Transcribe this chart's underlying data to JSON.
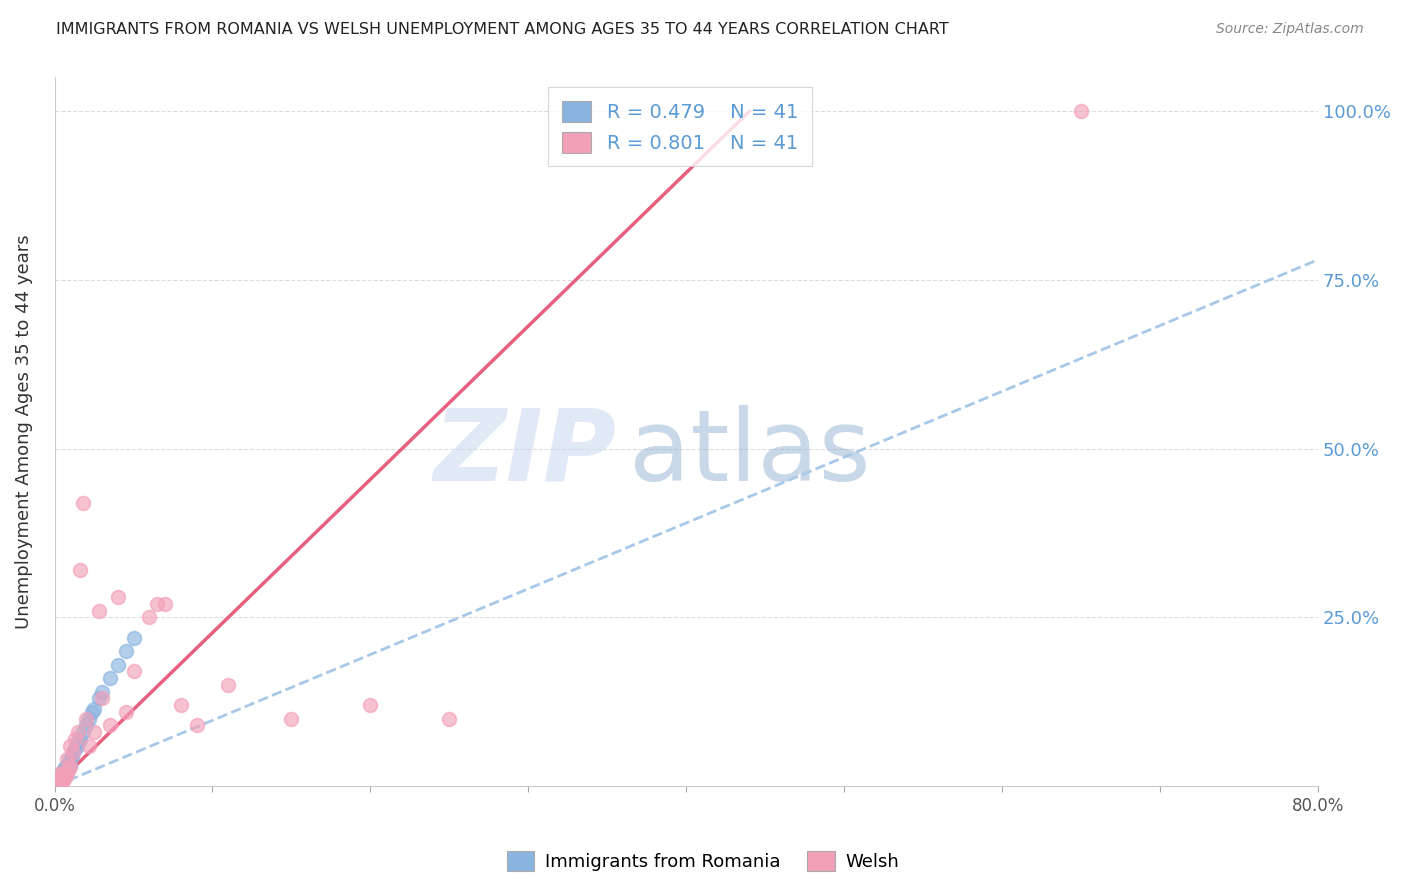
{
  "title": "IMMIGRANTS FROM ROMANIA VS WELSH UNEMPLOYMENT AMONG AGES 35 TO 44 YEARS CORRELATION CHART",
  "source": "Source: ZipAtlas.com",
  "ylabel": "Unemployment Among Ages 35 to 44 years",
  "legend_label1": "Immigrants from Romania",
  "legend_label2": "Welsh",
  "legend_r1": "R = 0.479",
  "legend_n1": "N = 41",
  "legend_r2": "R = 0.801",
  "legend_n2": "N = 41",
  "xlim": [
    0.0,
    0.8
  ],
  "ylim": [
    0.0,
    1.05
  ],
  "color_blue": "#89B4E0",
  "color_pink": "#F2A0B8",
  "color_blue_line": "#A8C8E8",
  "color_pink_line": "#E86080",
  "watermark_zip": "ZIP",
  "watermark_atlas": "atlas",
  "blue_x": [
    0.0,
    0.001,
    0.001,
    0.002,
    0.002,
    0.002,
    0.003,
    0.003,
    0.003,
    0.004,
    0.004,
    0.004,
    0.005,
    0.005,
    0.005,
    0.006,
    0.006,
    0.007,
    0.007,
    0.008,
    0.008,
    0.009,
    0.01,
    0.01,
    0.011,
    0.012,
    0.013,
    0.014,
    0.015,
    0.016,
    0.018,
    0.02,
    0.022,
    0.024,
    0.025,
    0.028,
    0.03,
    0.035,
    0.04,
    0.045,
    0.05
  ],
  "blue_y": [
    0.0,
    0.005,
    0.01,
    0.005,
    0.01,
    0.015,
    0.005,
    0.01,
    0.015,
    0.01,
    0.015,
    0.02,
    0.01,
    0.015,
    0.02,
    0.015,
    0.025,
    0.02,
    0.03,
    0.025,
    0.03,
    0.035,
    0.03,
    0.04,
    0.045,
    0.05,
    0.055,
    0.06,
    0.065,
    0.07,
    0.08,
    0.09,
    0.1,
    0.11,
    0.115,
    0.13,
    0.14,
    0.16,
    0.18,
    0.2,
    0.22
  ],
  "pink_x": [
    0.0,
    0.001,
    0.002,
    0.003,
    0.003,
    0.004,
    0.004,
    0.005,
    0.005,
    0.006,
    0.006,
    0.007,
    0.008,
    0.008,
    0.009,
    0.01,
    0.01,
    0.012,
    0.013,
    0.015,
    0.016,
    0.018,
    0.02,
    0.022,
    0.025,
    0.028,
    0.03,
    0.035,
    0.04,
    0.045,
    0.05,
    0.06,
    0.065,
    0.07,
    0.08,
    0.09,
    0.11,
    0.15,
    0.2,
    0.25,
    0.65
  ],
  "pink_y": [
    0.0,
    0.005,
    0.01,
    0.005,
    0.015,
    0.01,
    0.02,
    0.005,
    0.015,
    0.01,
    0.02,
    0.015,
    0.02,
    0.04,
    0.025,
    0.03,
    0.06,
    0.05,
    0.07,
    0.08,
    0.32,
    0.42,
    0.1,
    0.06,
    0.08,
    0.26,
    0.13,
    0.09,
    0.28,
    0.11,
    0.17,
    0.25,
    0.27,
    0.27,
    0.12,
    0.09,
    0.15,
    0.1,
    0.12,
    0.1,
    1.0
  ],
  "pink_line_x0": 0.0,
  "pink_line_y0": 0.0,
  "pink_line_x1": 0.44,
  "pink_line_y1": 1.0,
  "blue_line_x0": 0.0,
  "blue_line_y0": 0.0,
  "blue_line_x1": 0.8,
  "blue_line_y1": 0.78
}
